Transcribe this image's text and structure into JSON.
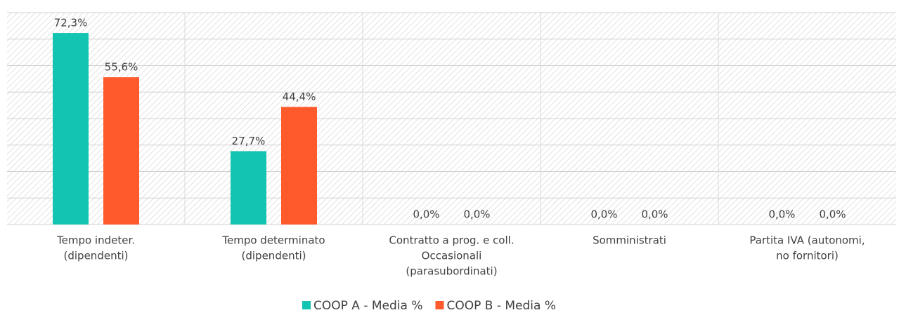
{
  "chart_data": {
    "type": "bar",
    "categories": [
      [
        "Tempo indeter.",
        "(dipendenti)"
      ],
      [
        "Tempo determinato",
        "(dipendenti)"
      ],
      [
        "Contratto a prog. e coll.",
        "Occasionali",
        "(parasubordinati)"
      ],
      [
        "Somministrati"
      ],
      [
        "Partita IVA (autonomi,",
        "no fornitori)"
      ]
    ],
    "series": [
      {
        "name": "COOP A - Media %",
        "color": "#14c4b2",
        "values": [
          72.3,
          27.7,
          0,
          0,
          0
        ],
        "value_labels": [
          "72,3%",
          "27,7%",
          "0,0%",
          "0,0%",
          "0,0%"
        ]
      },
      {
        "name": "COOP B - Media %",
        "color": "#ff5a2b",
        "values": [
          55.6,
          44.4,
          0,
          0,
          0
        ],
        "value_labels": [
          "55,6%",
          "44,4%",
          "0,0%",
          "0,0%",
          "0,0%"
        ]
      }
    ],
    "ylim": [
      0,
      80
    ],
    "yticks": [
      0,
      10,
      20,
      30,
      40,
      50,
      60,
      70,
      80
    ],
    "grid": true,
    "legend": "bottom"
  }
}
